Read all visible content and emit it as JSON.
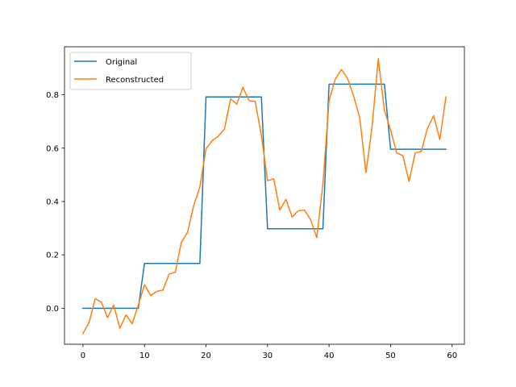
{
  "chart_data": {
    "type": "line",
    "title": "",
    "xlabel": "",
    "ylabel": "",
    "xlim": [
      -3,
      62
    ],
    "ylim": [
      -0.135,
      0.98
    ],
    "xticks": [
      0,
      10,
      20,
      30,
      40,
      50,
      60
    ],
    "yticks": [
      0.0,
      0.2,
      0.4,
      0.6,
      0.8
    ],
    "ytick_labels": [
      "0.0",
      "0.2",
      "0.4",
      "0.6",
      "0.8"
    ],
    "grid": false,
    "legend_position": "top-left",
    "x": [
      0,
      1,
      2,
      3,
      4,
      5,
      6,
      7,
      8,
      9,
      10,
      11,
      12,
      13,
      14,
      15,
      16,
      17,
      18,
      19,
      20,
      21,
      22,
      23,
      24,
      25,
      26,
      27,
      28,
      29,
      30,
      31,
      32,
      33,
      34,
      35,
      36,
      37,
      38,
      39,
      40,
      41,
      42,
      43,
      44,
      45,
      46,
      47,
      48,
      49,
      50,
      51,
      52,
      53,
      54,
      55,
      56,
      57,
      58,
      59
    ],
    "series": [
      {
        "name": "Original",
        "color": "#1f77b4",
        "values": [
          0,
          0,
          0,
          0,
          0,
          0,
          0,
          0,
          0,
          0,
          0.168,
          0.168,
          0.168,
          0.168,
          0.168,
          0.168,
          0.168,
          0.168,
          0.168,
          0.168,
          0.792,
          0.792,
          0.792,
          0.792,
          0.792,
          0.792,
          0.792,
          0.792,
          0.792,
          0.792,
          0.298,
          0.298,
          0.298,
          0.298,
          0.298,
          0.298,
          0.298,
          0.298,
          0.298,
          0.298,
          0.84,
          0.84,
          0.84,
          0.84,
          0.84,
          0.84,
          0.84,
          0.84,
          0.84,
          0.84,
          0.596,
          0.596,
          0.596,
          0.596,
          0.596,
          0.596,
          0.596,
          0.596,
          0.596,
          0.596
        ]
      },
      {
        "name": "Reconstructed",
        "color": "#ff7f0e",
        "values": [
          -0.095,
          -0.053,
          0.036,
          0.022,
          -0.035,
          0.012,
          -0.075,
          -0.025,
          -0.058,
          0.012,
          0.088,
          0.048,
          0.063,
          0.068,
          0.128,
          0.135,
          0.248,
          0.285,
          0.385,
          0.455,
          0.598,
          0.628,
          0.645,
          0.672,
          0.785,
          0.765,
          0.828,
          0.778,
          0.775,
          0.648,
          0.478,
          0.485,
          0.368,
          0.408,
          0.342,
          0.365,
          0.368,
          0.332,
          0.265,
          0.465,
          0.778,
          0.858,
          0.895,
          0.862,
          0.795,
          0.712,
          0.508,
          0.682,
          0.935,
          0.742,
          0.668,
          0.582,
          0.572,
          0.475,
          0.582,
          0.588,
          0.675,
          0.722,
          0.632,
          0.792
        ]
      }
    ]
  }
}
